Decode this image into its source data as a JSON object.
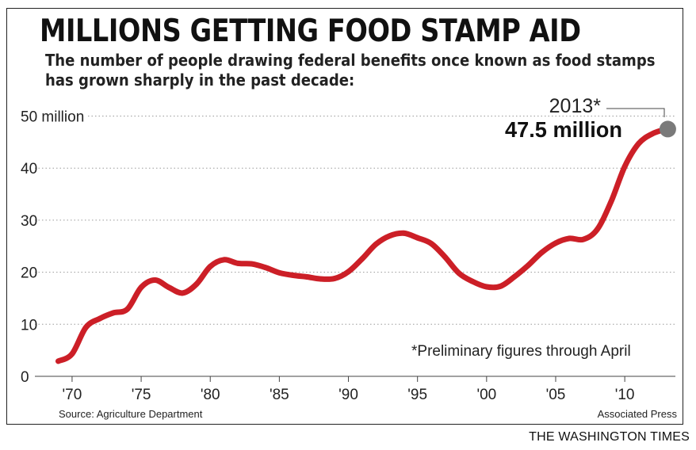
{
  "header": {
    "title": "MILLIONS GETTING FOOD STAMP AID",
    "subtitle": "The number of people drawing federal benefits once known as food stamps has grown sharply in the past decade:"
  },
  "footer": {
    "source": "Source: Agriculture Department",
    "credit": "Associated Press",
    "brand": "THE WASHINGTON TIMES"
  },
  "colors": {
    "line": "#cc1f27",
    "endpoint": "#7a7a7a",
    "grid": "#9a9a9a"
  },
  "chart_data": {
    "type": "line",
    "y_ticks": [
      0,
      10,
      20,
      30,
      40,
      50
    ],
    "y_tick_labels": [
      "0",
      "10",
      "20",
      "30",
      "40",
      "50 million"
    ],
    "x_ticks": [
      1970,
      1975,
      1980,
      1985,
      1990,
      1995,
      2000,
      2005,
      2010
    ],
    "x_tick_labels": [
      "'70",
      "'75",
      "'80",
      "'85",
      "'90",
      "'95",
      "'00",
      "'05",
      "'10"
    ],
    "xlim": [
      1969,
      2013
    ],
    "ylim": [
      0,
      50
    ],
    "grid": true,
    "x": [
      1969,
      1970,
      1971,
      1972,
      1973,
      1974,
      1975,
      1976,
      1977,
      1978,
      1979,
      1980,
      1981,
      1982,
      1983,
      1984,
      1985,
      1986,
      1987,
      1988,
      1989,
      1990,
      1991,
      1992,
      1993,
      1994,
      1995,
      1996,
      1997,
      1998,
      1999,
      2000,
      2001,
      2002,
      2003,
      2004,
      2005,
      2006,
      2007,
      2008,
      2009,
      2010,
      2011,
      2012,
      2013
    ],
    "y": [
      2.9,
      4.3,
      9.4,
      11.1,
      12.2,
      12.9,
      17.1,
      18.5,
      17.1,
      16.0,
      17.7,
      21.1,
      22.4,
      21.7,
      21.6,
      20.9,
      19.9,
      19.4,
      19.1,
      18.7,
      18.8,
      20.1,
      22.6,
      25.4,
      27.0,
      27.5,
      26.6,
      25.5,
      22.9,
      19.8,
      18.2,
      17.2,
      17.3,
      19.1,
      21.3,
      23.8,
      25.6,
      26.5,
      26.3,
      28.2,
      33.5,
      40.3,
      44.7,
      46.6,
      47.5
    ],
    "end_label": {
      "year": "2013*",
      "value": "47.5 million"
    },
    "annotation": "*Preliminary figures through April"
  }
}
